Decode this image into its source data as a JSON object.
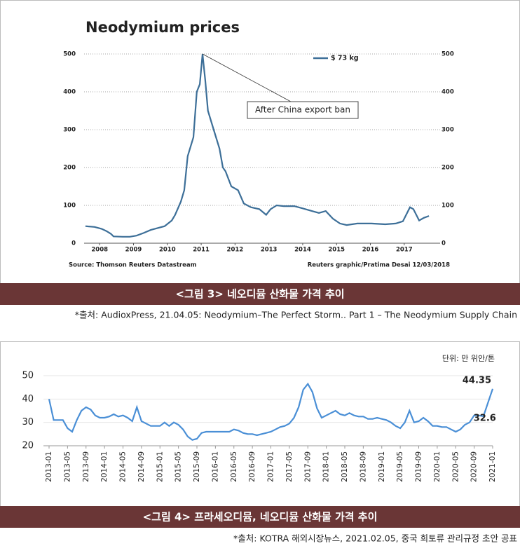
{
  "chart_data": [
    {
      "type": "line",
      "title": "Neodymium prices",
      "x": [
        2007.58,
        2007.85,
        2008.06,
        2008.2,
        2008.33,
        2008.41,
        2008.68,
        2008.89,
        2009.09,
        2009.3,
        2009.51,
        2009.71,
        2009.92,
        2010.13,
        2010.23,
        2010.4,
        2010.5,
        2010.6,
        2010.77,
        2010.87,
        2010.96,
        2011.04,
        2011.12,
        2011.2,
        2011.37,
        2011.54,
        2011.64,
        2011.72,
        2011.89,
        2012.09,
        2012.26,
        2012.47,
        2012.72,
        2012.92,
        2013.05,
        2013.23,
        2013.44,
        2013.75,
        2014.0,
        2014.27,
        2014.48,
        2014.68,
        2014.89,
        2015.1,
        2015.3,
        2015.61,
        2016.03,
        2016.44,
        2016.75,
        2016.96,
        2017.17,
        2017.27,
        2017.44,
        2017.58,
        2017.73
      ],
      "series": [
        {
          "name": "$ 73 kg",
          "color": "#3d6f98",
          "values": [
            45,
            43,
            38,
            32,
            25,
            18,
            17,
            17,
            20,
            27,
            35,
            40,
            45,
            60,
            75,
            110,
            140,
            230,
            280,
            400,
            420,
            500,
            430,
            350,
            300,
            250,
            200,
            190,
            150,
            140,
            105,
            95,
            90,
            75,
            90,
            100,
            98,
            98,
            92,
            85,
            80,
            85,
            65,
            52,
            48,
            52,
            52,
            50,
            52,
            58,
            95,
            90,
            60,
            67,
            72
          ]
        }
      ],
      "xlim": [
        2007.54,
        2018.06
      ],
      "xticks": [
        2008,
        2009,
        2010,
        2011,
        2012,
        2013,
        2014,
        2015,
        2016,
        2017
      ],
      "ylim": [
        0,
        500
      ],
      "yticks": [
        0,
        100,
        200,
        300,
        400,
        500
      ],
      "y2lim": [
        0,
        500
      ],
      "y2ticks": [
        0,
        100,
        200,
        300,
        400,
        500
      ],
      "grid": true,
      "legend": "top-right",
      "annotation": "After China export ban",
      "source_left": "Source: Thomson Reuters Datastream",
      "source_right": "Reuters graphic/Pratima Desai 12/03/2018"
    },
    {
      "type": "line",
      "color": "#4a8fd6",
      "unit": "단위: 만 위안/톤",
      "categories": [
        "2013-01",
        null,
        null,
        null,
        "2013-05",
        null,
        null,
        null,
        "2013-09",
        null,
        null,
        null,
        "2014-01",
        null,
        null,
        null,
        "2014-05",
        null,
        null,
        null,
        "2014-09",
        null,
        null,
        null,
        "2015-01",
        null,
        null,
        null,
        "2015-05",
        null,
        null,
        null,
        "2015-09",
        null,
        null,
        null,
        "2016-01",
        null,
        null,
        null,
        "2016-05",
        null,
        null,
        null,
        "2016-09",
        null,
        null,
        null,
        "2017-01",
        null,
        null,
        null,
        "2017-05",
        null,
        null,
        null,
        "2017-09",
        null,
        null,
        null,
        "2018-01",
        null,
        null,
        null,
        "2018-05",
        null,
        null,
        null,
        "2018-09",
        null,
        null,
        null,
        "2019-01",
        null,
        null,
        null,
        "2019-05",
        null,
        null,
        null,
        "2019-09",
        null,
        null,
        null,
        "2020-01",
        null,
        null,
        null,
        "2020-05",
        null,
        null,
        null,
        "2020-09",
        null,
        null,
        null,
        "2021-01"
      ],
      "values": [
        40,
        31,
        31,
        31,
        27.5,
        26,
        31,
        35,
        36.5,
        35.5,
        33,
        32,
        32,
        32.5,
        33.5,
        32.5,
        33,
        32,
        30.5,
        36.5,
        30.5,
        29.5,
        28.5,
        28.5,
        28.5,
        30,
        28.5,
        30,
        29,
        27,
        24,
        22.5,
        23,
        25.5,
        26,
        26,
        26,
        26,
        26,
        26,
        27,
        26.5,
        25.5,
        25,
        25,
        24.5,
        25,
        25.5,
        26,
        27,
        28,
        28.5,
        29.5,
        32,
        36.5,
        44,
        46.5,
        43,
        36,
        32,
        33,
        34,
        35,
        33.5,
        33,
        34,
        33,
        32.5,
        32.5,
        31.5,
        31.5,
        32,
        31.5,
        31,
        30,
        28.5,
        27.5,
        30,
        35,
        30,
        30.5,
        32,
        30.5,
        28.5,
        28.5,
        28,
        28,
        27,
        26,
        27,
        29,
        30,
        33,
        33,
        32.6,
        38.5,
        44.35
      ],
      "value_labels": [
        null,
        null,
        null,
        null,
        null,
        null,
        null,
        null,
        null,
        null,
        null,
        null,
        null,
        null,
        null,
        null,
        null,
        null,
        null,
        null,
        null,
        null,
        null,
        null,
        null,
        null,
        null,
        null,
        null,
        null,
        null,
        null,
        null,
        null,
        null,
        null,
        null,
        null,
        null,
        null,
        null,
        null,
        null,
        null,
        null,
        null,
        null,
        null,
        null,
        null,
        null,
        null,
        null,
        null,
        null,
        null,
        null,
        null,
        null,
        null,
        null,
        null,
        null,
        null,
        null,
        null,
        null,
        null,
        null,
        null,
        null,
        null,
        null,
        null,
        null,
        null,
        null,
        null,
        null,
        null,
        null,
        null,
        null,
        null,
        null,
        null,
        null,
        null,
        null,
        null,
        null,
        null,
        null,
        null,
        "32.6",
        null,
        "44.35"
      ],
      "ylim": [
        20,
        50
      ],
      "yticks": [
        20,
        30,
        40,
        50
      ],
      "grid": true
    }
  ],
  "captions": [
    "<그림 3> 네오디뮴 산화물 가격 추이",
    "<그림 4> 프라세오디뮴, 네오디뮴 산화물 가격 추이"
  ],
  "sources": [
    "*출처: AudioxPress, 21.04.05: Neodymium–The Perfect Storm.. Part 1 – The Neodymium Supply Chain",
    "*출처: KOTRA 해외시장뉴스, 2021.02.05, 중국 희토류 관리규정 초안 공표"
  ]
}
